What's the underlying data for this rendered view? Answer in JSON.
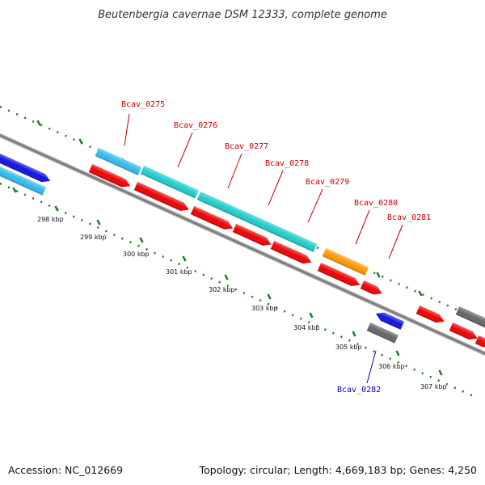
{
  "title": "Beutenbergia cavernae DSM 12333, complete genome",
  "footer": {
    "accession": "Accession: NC_012669",
    "summary": "Topology: circular; Length: 4,669,183 bp; Genes: 4,250"
  },
  "ticks": [
    "298 kbp",
    "299 kbp",
    "300 kbp",
    "301 kbp",
    "302 kbp",
    "303 kbp",
    "304 kbp",
    "305 kbp",
    "306 kbp",
    "307 kbp"
  ],
  "genes": [
    {
      "label": "Bcav_0275",
      "color": "#cc0000"
    },
    {
      "label": "Bcav_0276",
      "color": "#cc0000"
    },
    {
      "label": "Bcav_0277",
      "color": "#cc0000"
    },
    {
      "label": "Bcav_0278",
      "color": "#cc0000"
    },
    {
      "label": "Bcav_0279",
      "color": "#cc0000"
    },
    {
      "label": "Bcav_0280",
      "color": "#cc0000"
    },
    {
      "label": "Bcav_0281",
      "color": "#cc0000"
    },
    {
      "label": "Bcav_0282",
      "color": "#0000cc"
    }
  ],
  "colors": {
    "backbone": "#888888",
    "tick_ring": "#1a7a1a",
    "red": "#ee0000",
    "cyan": "#22cccc",
    "light_blue": "#33bbee",
    "blue": "#1111dd",
    "orange": "#ff9900",
    "gray": "#666666"
  }
}
